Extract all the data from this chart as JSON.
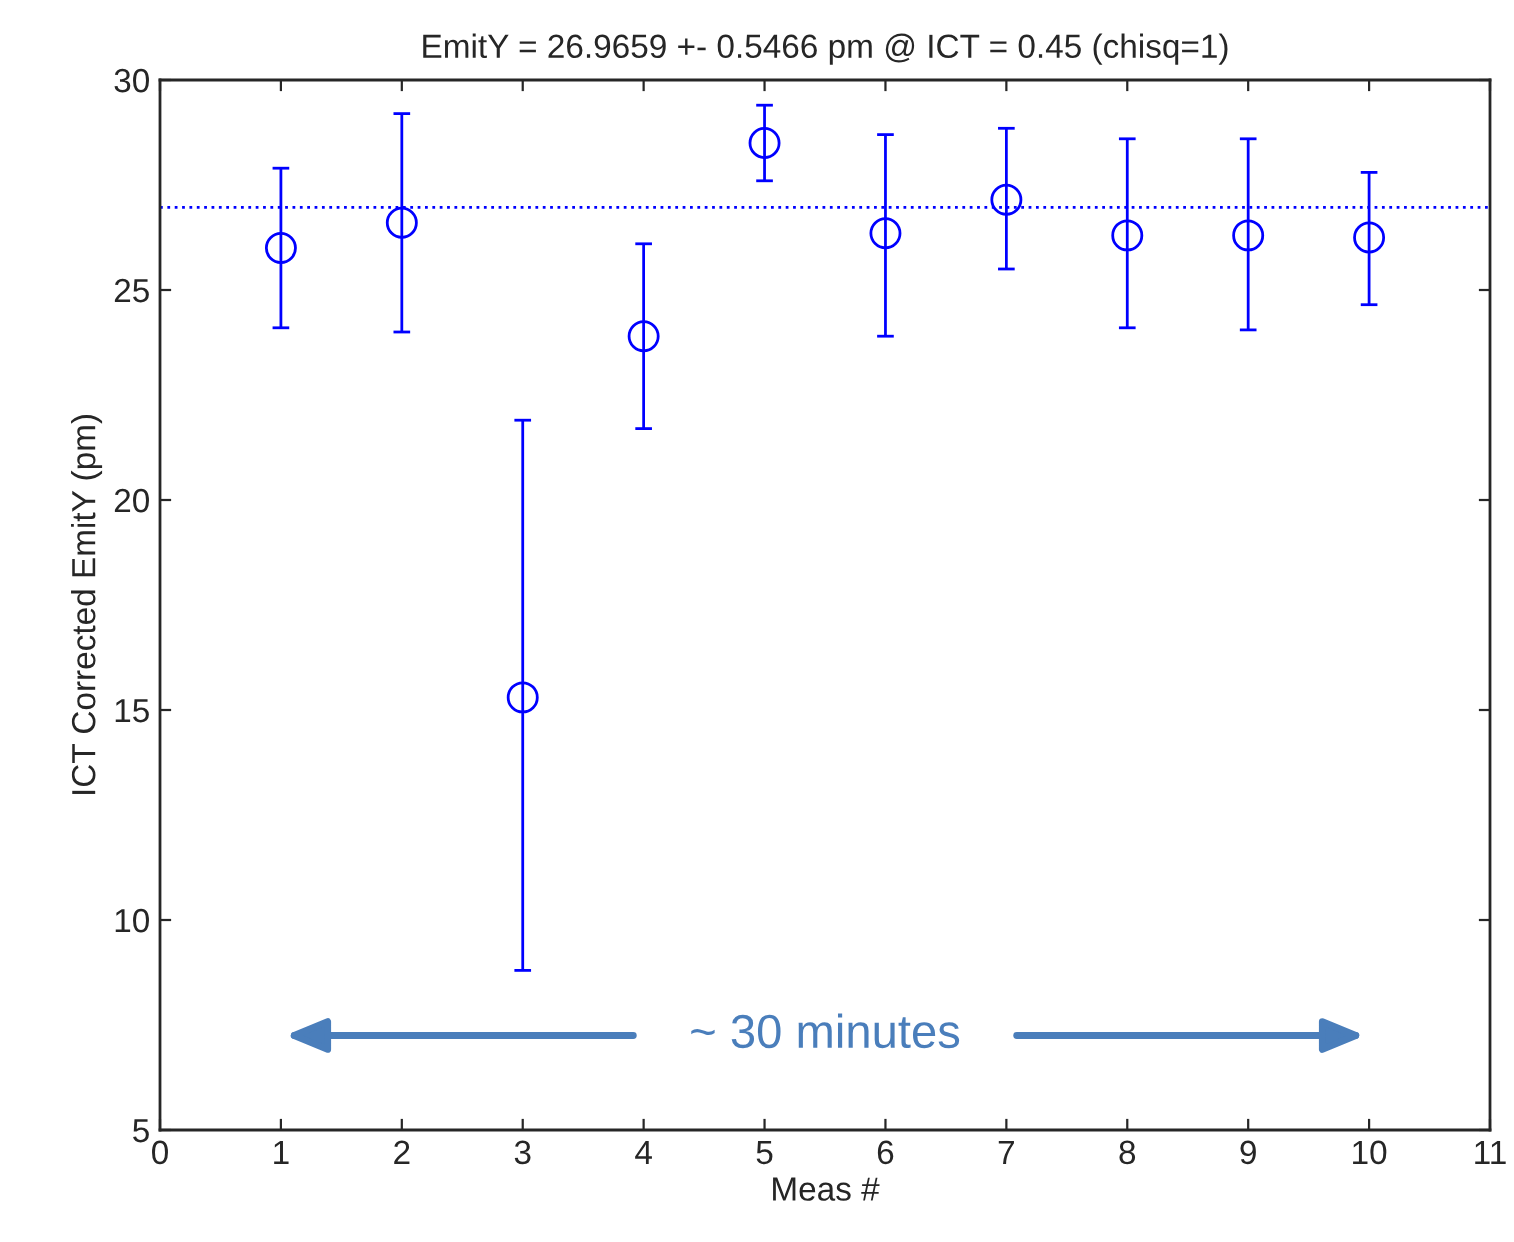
{
  "chart_data": {
    "type": "scatter",
    "title": "EmitY = 26.9659 +- 0.5466 pm @ ICT = 0.45 (chisq=1)",
    "xlabel": "Meas #",
    "ylabel": "ICT Corrected EmitY (pm)",
    "x": [
      1,
      2,
      3,
      4,
      5,
      6,
      7,
      8,
      9,
      10
    ],
    "series": [
      {
        "color": "#0000ff",
        "values": [
          26.0,
          26.6,
          15.3,
          23.9,
          28.5,
          26.35,
          27.15,
          26.3,
          26.3,
          26.25
        ],
        "errors": [
          [
            24.1,
            27.9
          ],
          [
            24.0,
            29.2
          ],
          [
            8.8,
            21.9
          ],
          [
            21.7,
            26.1
          ],
          [
            27.6,
            29.4
          ],
          [
            23.9,
            28.7
          ],
          [
            25.5,
            28.85
          ],
          [
            24.1,
            28.6
          ],
          [
            24.05,
            28.6
          ],
          [
            24.65,
            27.8
          ]
        ]
      }
    ],
    "marker": "circle",
    "xlim": [
      0,
      11
    ],
    "xticks": [
      0,
      1,
      2,
      3,
      4,
      5,
      6,
      7,
      8,
      9,
      10,
      11
    ],
    "ylim": [
      5,
      30
    ],
    "yticks": [
      5,
      10,
      15,
      20,
      25,
      30
    ],
    "ref_lines": [
      {
        "axis": "y",
        "value": 26.9659,
        "color": "#0000ff",
        "line_style": "dotted"
      }
    ],
    "annotations": [
      "~ 30 minutes"
    ],
    "grid": false
  }
}
